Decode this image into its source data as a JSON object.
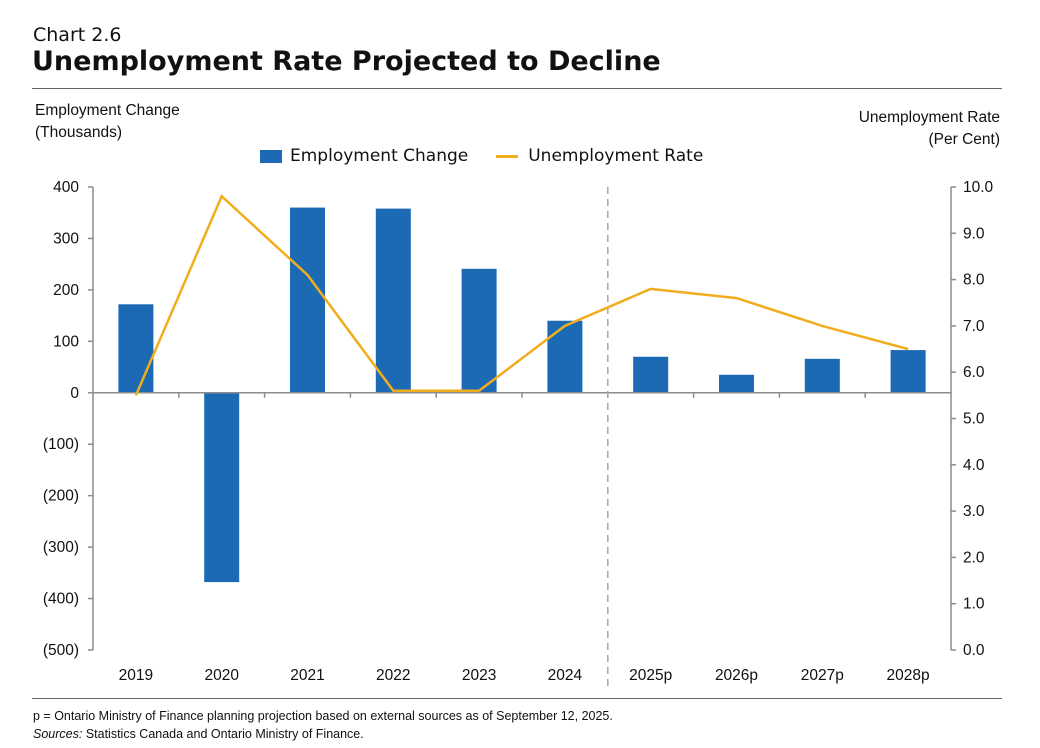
{
  "header": {
    "chart_number": "Chart 2.6",
    "title": "Unemployment Rate Projected to Decline"
  },
  "axes": {
    "left_title_line1": "Employment Change",
    "left_title_line2": "(Thousands)",
    "right_title_line1": "Unemployment Rate",
    "right_title_line2": "(Per Cent)"
  },
  "legend": {
    "bar_label": "Employment Change",
    "line_label": "Unemployment Rate"
  },
  "colors": {
    "bar": "#1C6AB4",
    "line": "#F0AD1E",
    "axis": "#8c8c8c"
  },
  "footnote": {
    "note": "p = Ontario Ministry of Finance planning projection based on external sources as of September 12, 2025.",
    "sources_label": "Sources:",
    "sources_text": " Statistics Canada and Ontario Ministry of Finance."
  },
  "chart_data": {
    "type": "bar",
    "title": "Unemployment Rate Projected to Decline",
    "categories": [
      "2019",
      "2020",
      "2021",
      "2022",
      "2023",
      "2024",
      "2025p",
      "2026p",
      "2027p",
      "2028p"
    ],
    "projection_start_index": 6,
    "series": [
      {
        "name": "Employment Change",
        "type": "bar",
        "axis": "left",
        "values": [
          172,
          -368,
          360,
          358,
          241,
          140,
          70,
          35,
          66,
          83
        ]
      },
      {
        "name": "Unemployment Rate",
        "type": "line",
        "axis": "right",
        "values": [
          5.5,
          9.8,
          8.1,
          5.6,
          5.6,
          7.0,
          7.8,
          7.6,
          7.0,
          6.5
        ]
      }
    ],
    "left_axis": {
      "label": "Employment Change (Thousands)",
      "ylim": [
        -500,
        400
      ],
      "ticks": [
        400,
        300,
        200,
        100,
        0,
        -100,
        -200,
        -300,
        -400,
        -500
      ],
      "tick_labels": [
        "400",
        "300",
        "200",
        "100",
        "0",
        "(100)",
        "(200)",
        "(300)",
        "(400)",
        "(500)"
      ]
    },
    "right_axis": {
      "label": "Unemployment Rate (Per Cent)",
      "ylim": [
        0,
        10
      ],
      "ticks": [
        10,
        9,
        8,
        7,
        6,
        5,
        4,
        3,
        2,
        1,
        0
      ],
      "tick_labels": [
        "10.0",
        "9.0",
        "8.0",
        "7.0",
        "6.0",
        "5.0",
        "4.0",
        "3.0",
        "2.0",
        "1.0",
        "0.0"
      ]
    },
    "legend_position": "top-center",
    "grid": false
  }
}
